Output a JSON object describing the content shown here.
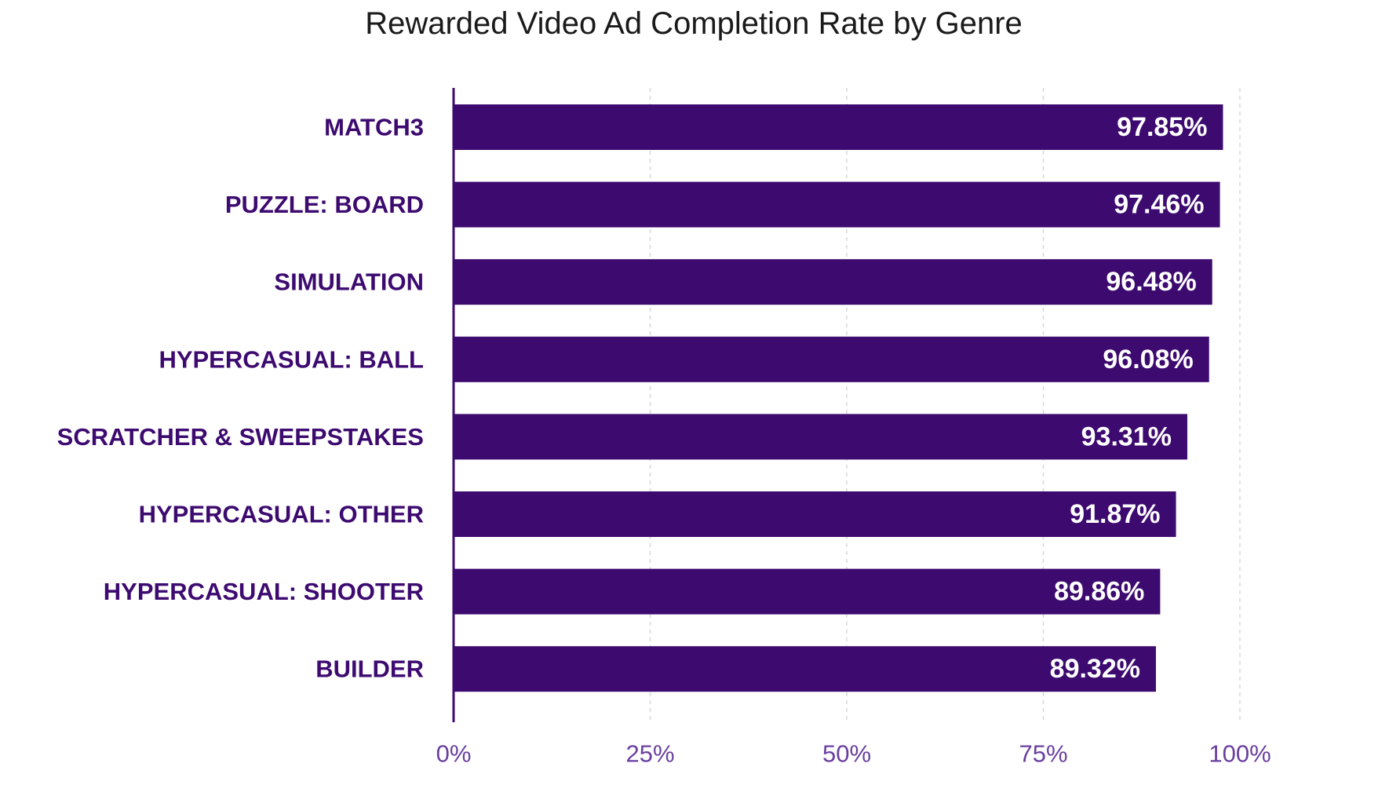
{
  "colors": {
    "bar": "#3d0a70",
    "label": "#3d0a70",
    "tick": "#6a3fa0",
    "grid": "#d8d8d8",
    "axis": "#3d0a70"
  },
  "chart_data": {
    "type": "bar",
    "orientation": "horizontal",
    "title": "Rewarded Video Ad Completion Rate by Genre",
    "categories": [
      "MATCH3",
      "PUZZLE: BOARD",
      "SIMULATION",
      "HYPERCASUAL: BALL",
      "SCRATCHER & SWEEPSTAKES",
      "HYPERCASUAL: OTHER",
      "HYPERCASUAL: SHOOTER",
      "BUILDER"
    ],
    "values": [
      97.85,
      97.46,
      96.48,
      96.08,
      93.31,
      91.87,
      89.86,
      89.32
    ],
    "data_labels": [
      "97.85%",
      "97.46%",
      "96.48%",
      "96.08%",
      "93.31%",
      "91.87%",
      "89.86%",
      "89.32%"
    ],
    "xlim": [
      0,
      100
    ],
    "xticks": [
      0,
      25,
      50,
      75,
      100
    ],
    "xtick_labels": [
      "0%",
      "25%",
      "50%",
      "75%",
      "100%"
    ],
    "grid": "vertical dashed",
    "legend": "none"
  }
}
